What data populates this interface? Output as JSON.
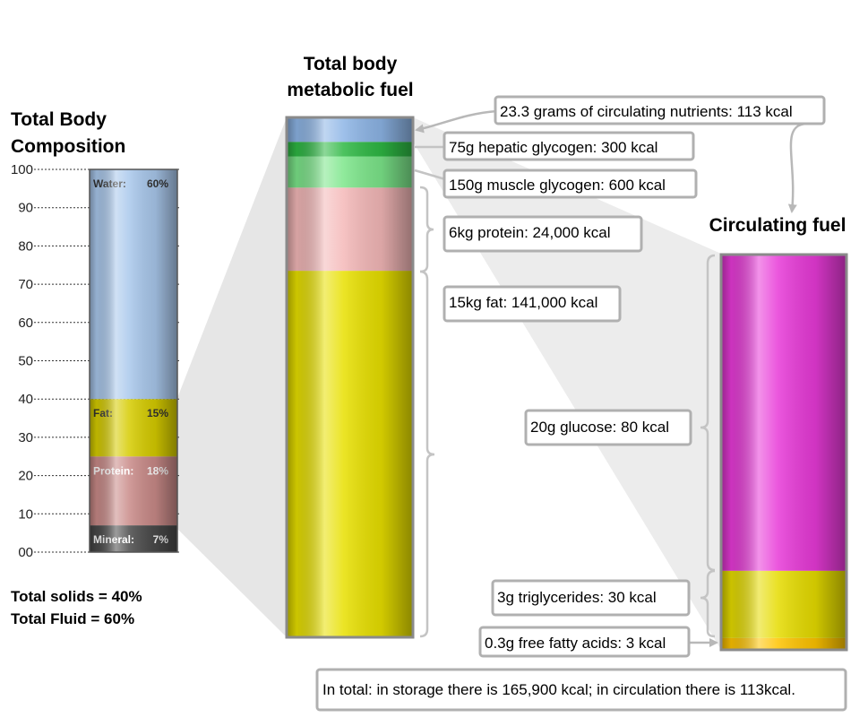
{
  "titles": {
    "composition": [
      "Total Body",
      "Composition"
    ],
    "metabolic": [
      "Total body",
      "metabolic fuel"
    ],
    "circulating": "Circulating fuel"
  },
  "composition_axis": {
    "ticks": [
      "100",
      "90",
      "80",
      "70",
      "60",
      "50",
      "40",
      "30",
      "20",
      "10",
      "00"
    ]
  },
  "composition_bar": {
    "segments": [
      {
        "key": "mineral",
        "name": "Mineral:",
        "value_label": "7%",
        "from": 0,
        "to": 7,
        "color": "#4a4a4a",
        "label_color": "#ffffff"
      },
      {
        "key": "protein",
        "name": "Protein:",
        "value_label": "18%",
        "from": 7,
        "to": 25,
        "color": "#c98a88",
        "label_color": "#ffffff"
      },
      {
        "key": "fat",
        "name": "Fat:",
        "value_label": "15%",
        "from": 25,
        "to": 40,
        "color": "#d6cc00",
        "label_color": "#333333"
      },
      {
        "key": "water",
        "name": "Water:",
        "value_label": "60%",
        "from": 40,
        "to": 100,
        "color": "#a9c8ec",
        "label_color": "#333333"
      }
    ]
  },
  "summary": {
    "solids": "Total solids = 40%",
    "fluid": "Total Fluid = 60%"
  },
  "metabolic_bar": {
    "segments": [
      {
        "key": "fat",
        "color": "#e8e000",
        "share": 0.705
      },
      {
        "key": "protein",
        "color": "#f4b8b8",
        "share": 0.16
      },
      {
        "key": "muscle-glycogen",
        "color": "#7ce68a",
        "share": 0.06
      },
      {
        "key": "hepatic-glycogen",
        "color": "#2eb844",
        "share": 0.028
      },
      {
        "key": "circulating",
        "color": "#8db5e6",
        "share": 0.047
      }
    ]
  },
  "circulating_bar": {
    "segments": [
      {
        "key": "free-fatty-acids",
        "color": "#ffc400",
        "share": 0.03
      },
      {
        "key": "triglycerides",
        "color": "#e6dc00",
        "share": 0.17
      },
      {
        "key": "glucose",
        "color": "#e83ad8",
        "share": 0.8
      }
    ]
  },
  "callouts": {
    "circulating_nutrients": "23.3 grams of circulating nutrients: 113 kcal",
    "hepatic_glycogen": "75g hepatic glycogen: 300 kcal",
    "muscle_glycogen": "150g muscle glycogen: 600 kcal",
    "protein": "6kg protein: 24,000 kcal",
    "fat": "15kg fat: 141,000 kcal",
    "glucose": "20g glucose: 80 kcal",
    "triglycerides": "3g triglycerides: 30 kcal",
    "free_fatty_acids": "0.3g free fatty acids: 3 kcal",
    "total": "In total: in storage there is 165,900 kcal; in circulation there is 113kcal."
  },
  "colors": {
    "grey_border": "#b0b0b0",
    "projection": "#e6e6e6"
  }
}
